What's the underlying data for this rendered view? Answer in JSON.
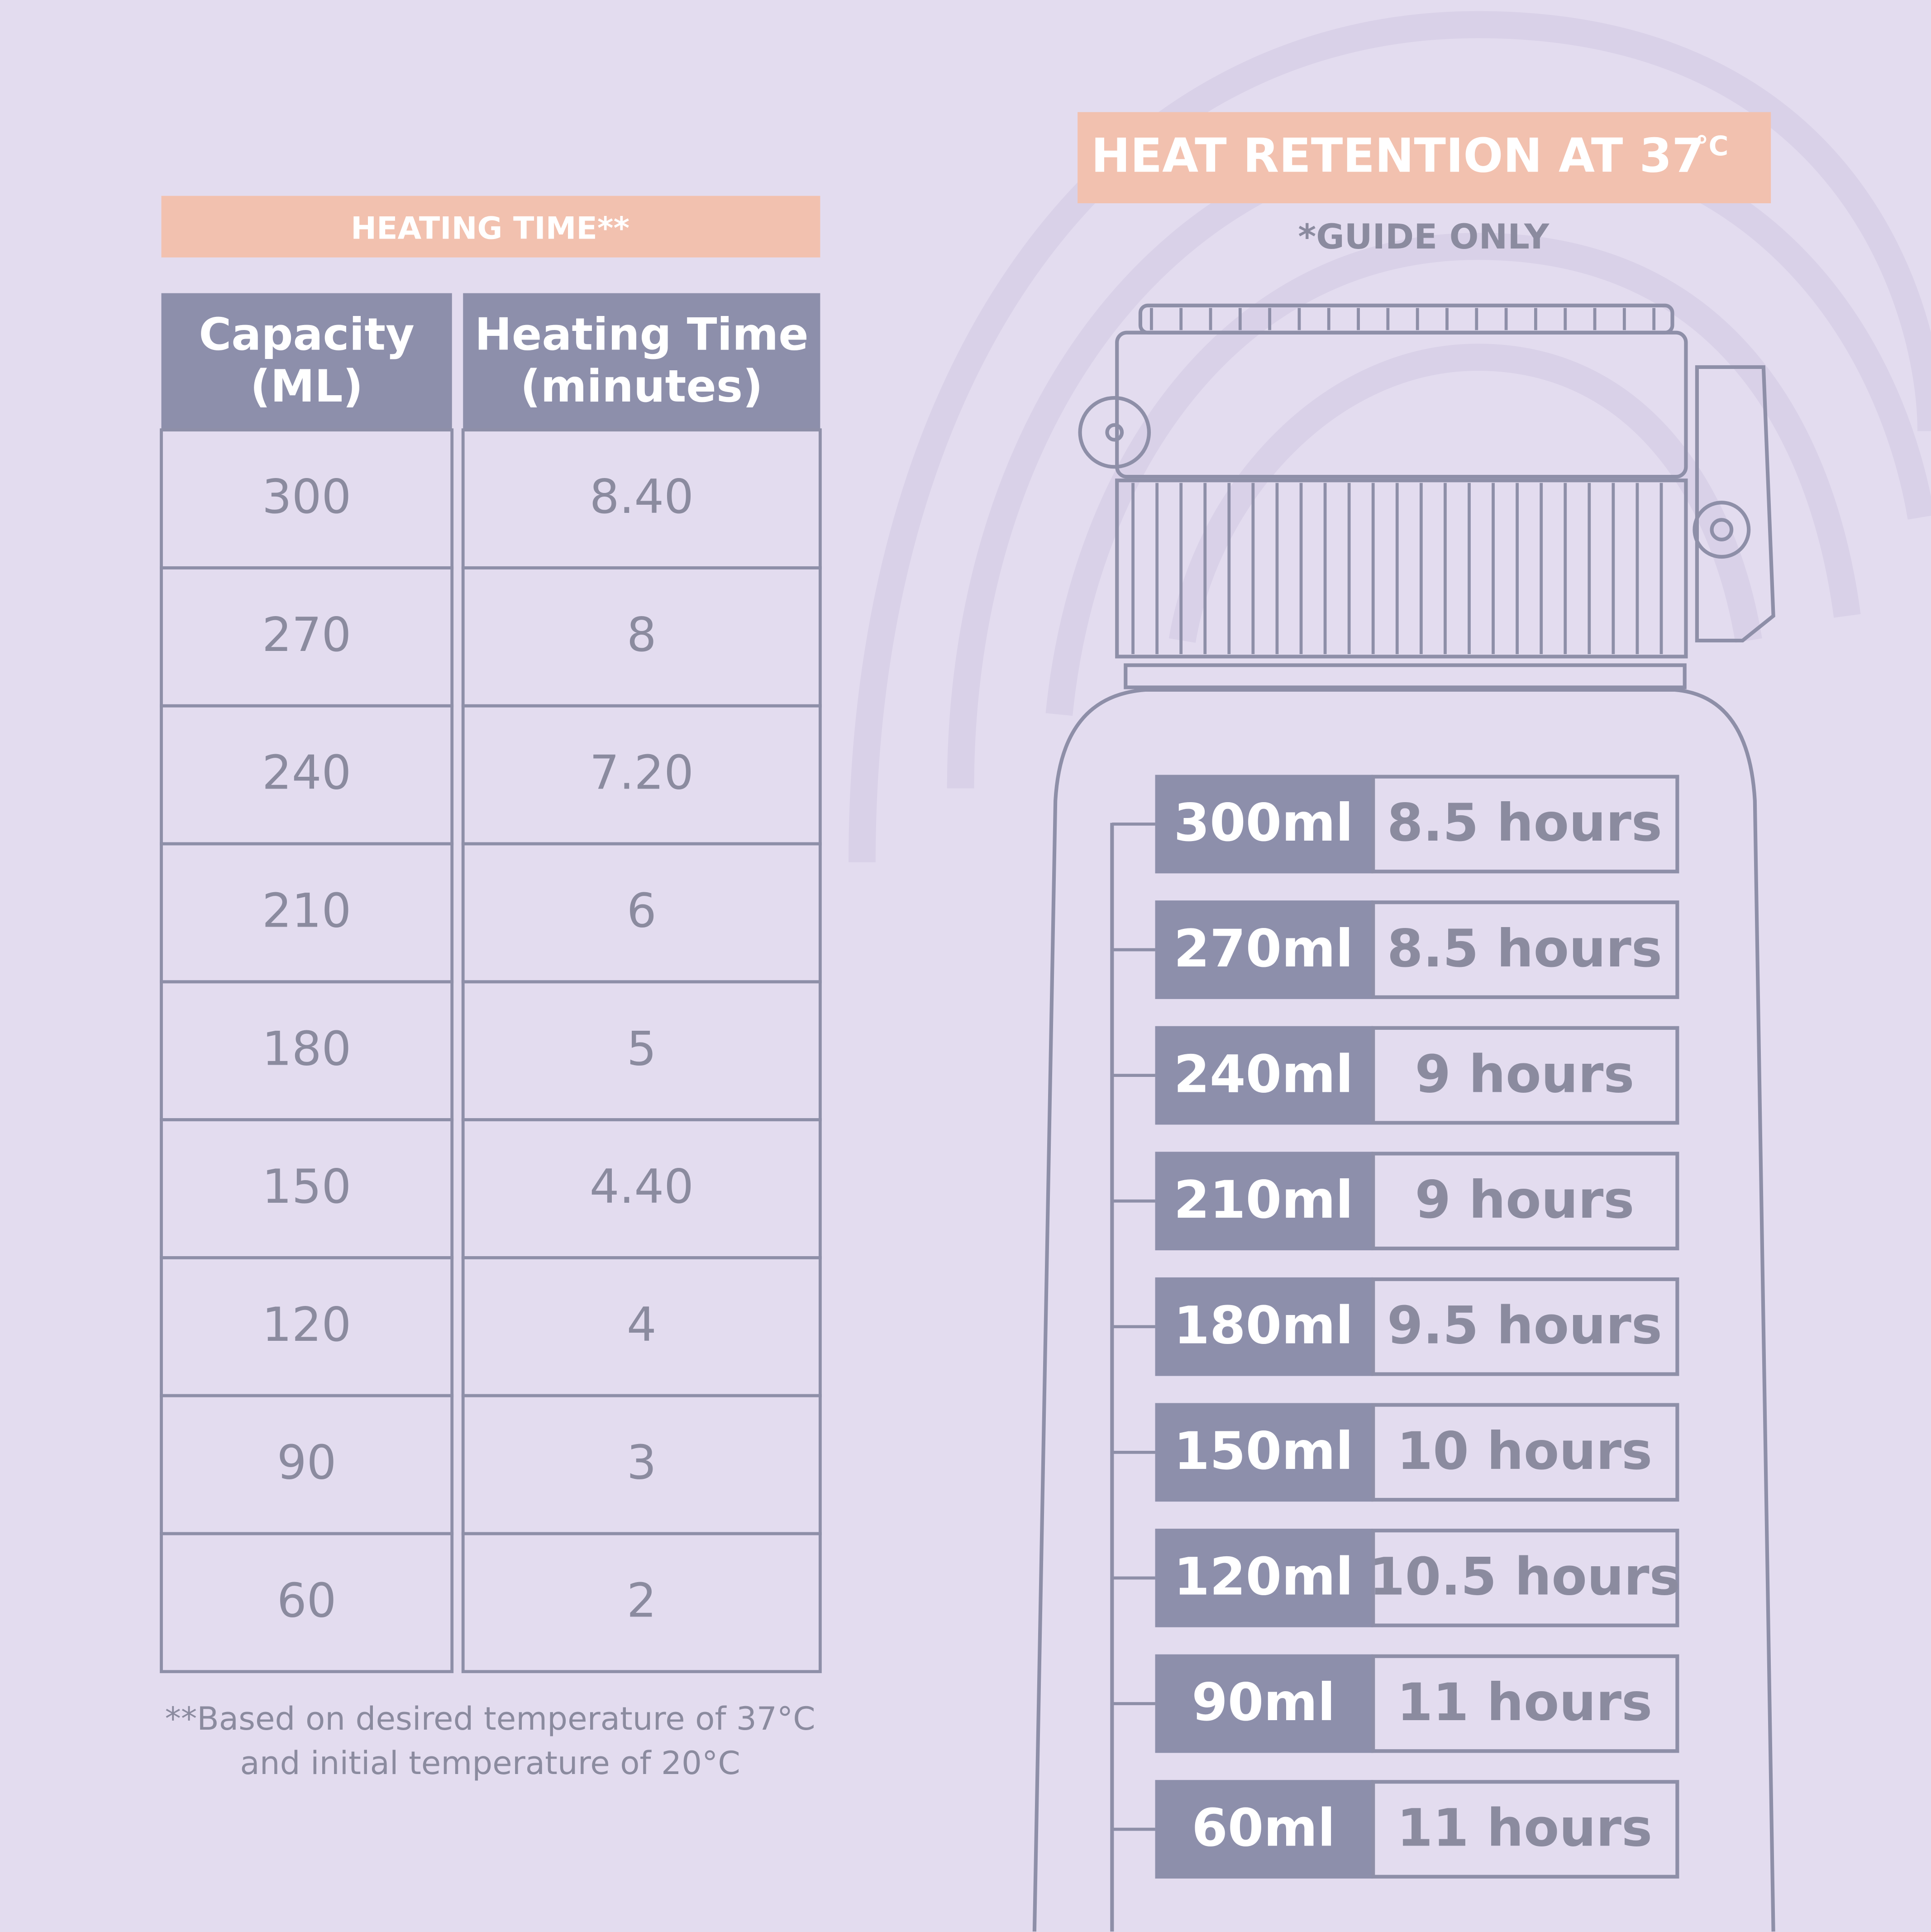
{
  "heating_table": {
    "title": "HEATING TIME**",
    "headers": [
      [
        "Capacity",
        "(ML)"
      ],
      [
        "Heating Time",
        "(minutes)"
      ]
    ],
    "rows": [
      [
        "300",
        "8.40"
      ],
      [
        "270",
        "8"
      ],
      [
        "240",
        "7.20"
      ],
      [
        "210",
        "6"
      ],
      [
        "180",
        "5"
      ],
      [
        "150",
        "4.40"
      ],
      [
        "120",
        "4"
      ],
      [
        "90",
        "3"
      ],
      [
        "60",
        "2"
      ]
    ],
    "footnote": [
      "**Based on desired temperature of 37°C",
      "and initial temperature of 20°C"
    ]
  },
  "heat_retention": {
    "title": "HEAT RETENTION AT 37",
    "title_unit": "°C",
    "subtitle": "*GUIDE ONLY",
    "rows": [
      [
        "300ml",
        "8.5 hours"
      ],
      [
        "270ml",
        "8.5 hours"
      ],
      [
        "240ml",
        "9 hours"
      ],
      [
        "210ml",
        "9 hours"
      ],
      [
        "180ml",
        "9.5 hours"
      ],
      [
        "150ml",
        "10 hours"
      ],
      [
        "120ml",
        "10.5 hours"
      ],
      [
        "90ml",
        "11 hours"
      ],
      [
        "60ml",
        "11 hours"
      ]
    ]
  }
}
